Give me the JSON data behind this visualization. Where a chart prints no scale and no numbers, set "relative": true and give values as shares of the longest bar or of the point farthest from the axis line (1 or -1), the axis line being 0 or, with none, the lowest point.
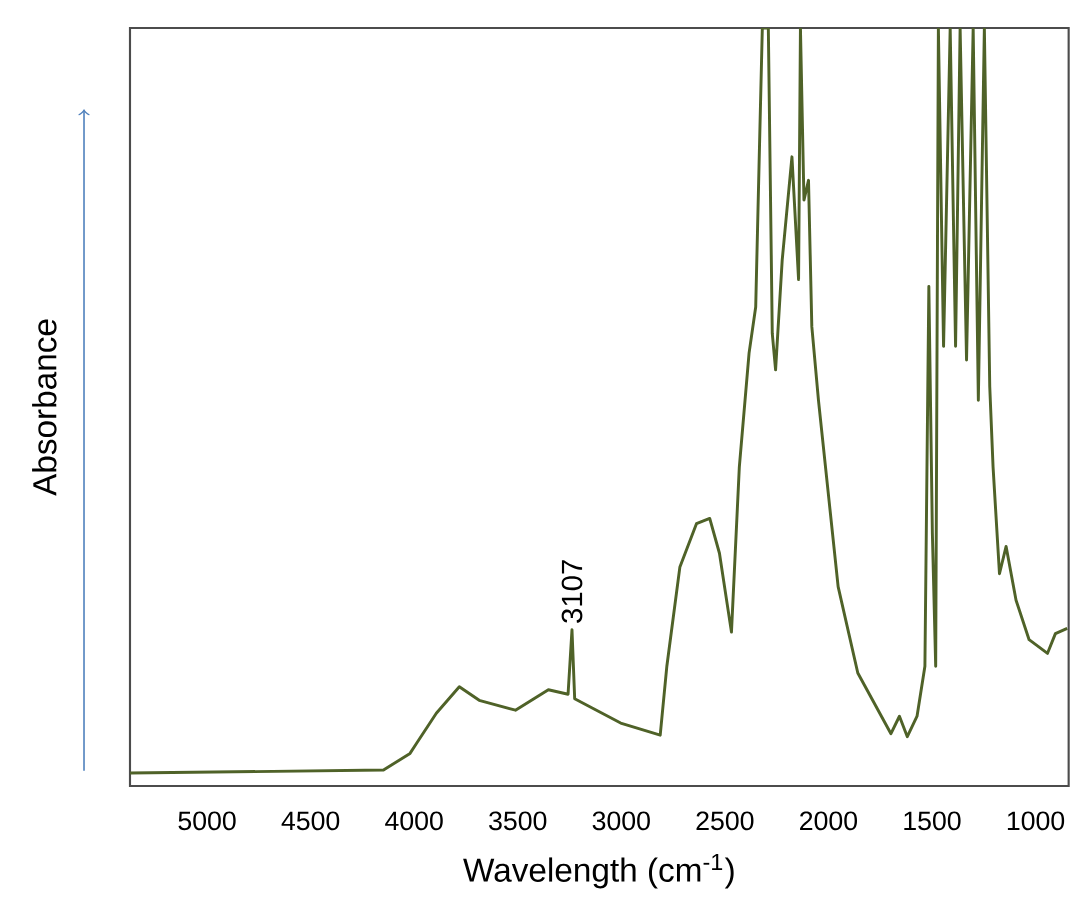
{
  "chart_data": {
    "type": "line",
    "relative": true,
    "xlabel": "Wavelength (cm$^{-1}$)",
    "ylabel": "Absorbance",
    "xlim": [
      5372,
      840
    ],
    "xticks": [
      5000,
      4500,
      4000,
      3500,
      3000,
      2500,
      2000,
      1500,
      1000
    ],
    "annotations": [
      {
        "text": "3107",
        "x": 3238,
        "y": 0.206
      }
    ],
    "series": [
      {
        "color": "#4f6228",
        "x": [
          5372,
          4148,
          4020,
          3989,
          3893,
          3782,
          3686,
          3511,
          3352,
          3257,
          3238,
          3225,
          3003,
          2812,
          2780,
          2717,
          2637,
          2573,
          2526,
          2468,
          2430,
          2383,
          2351,
          2335,
          2319,
          2290,
          2271,
          2255,
          2223,
          2176,
          2144,
          2135,
          2118,
          2096,
          2080,
          2048,
          1953,
          1858,
          1698,
          1657,
          1619,
          1572,
          1534,
          1515,
          1498,
          1482,
          1469,
          1444,
          1412,
          1386,
          1364,
          1333,
          1301,
          1276,
          1247,
          1221,
          1205,
          1174,
          1142,
          1094,
          1031,
          942,
          904,
          847
        ],
        "values": [
          0.017,
          0.021,
          0.043,
          0.056,
          0.096,
          0.131,
          0.113,
          0.1,
          0.127,
          0.121,
          0.206,
          0.115,
          0.083,
          0.067,
          0.158,
          0.289,
          0.346,
          0.353,
          0.307,
          0.203,
          0.421,
          0.571,
          0.632,
          0.817,
          1.0,
          1.0,
          0.597,
          0.549,
          0.694,
          0.83,
          0.668,
          1.0,
          0.773,
          0.799,
          0.606,
          0.509,
          0.263,
          0.149,
          0.069,
          0.092,
          0.065,
          0.092,
          0.158,
          0.659,
          0.333,
          0.158,
          1.0,
          0.58,
          1.0,
          0.58,
          1.0,
          0.562,
          1.0,
          0.509,
          1.0,
          0.527,
          0.421,
          0.28,
          0.316,
          0.245,
          0.193,
          0.175,
          0.201,
          0.208
        ]
      }
    ]
  }
}
